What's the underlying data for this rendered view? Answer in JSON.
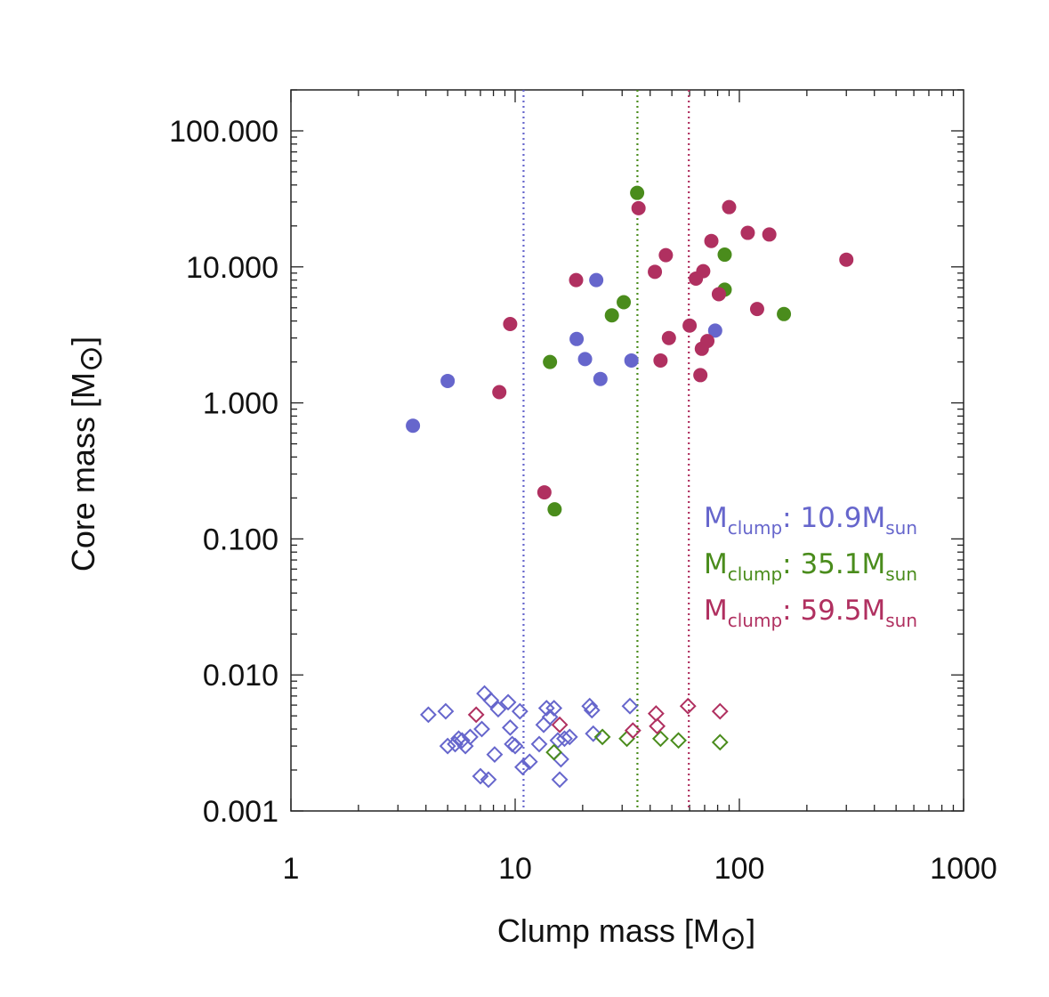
{
  "chart_data": {
    "type": "scatter",
    "xlabel": "Clump mass [M",
    "ylabel": "Core mass [M",
    "label_suffix": "]",
    "sun_symbol": "⊙",
    "xscale": "log",
    "yscale": "log",
    "xlim": [
      1,
      1000
    ],
    "ylim": [
      0.001,
      200
    ],
    "x_ticks": [
      {
        "value": 1,
        "label": "1"
      },
      {
        "value": 10,
        "label": "10"
      },
      {
        "value": 100,
        "label": "100"
      },
      {
        "value": 1000,
        "label": "1000"
      }
    ],
    "y_ticks": [
      {
        "value": 0.001,
        "label": "0.001"
      },
      {
        "value": 0.01,
        "label": "0.010"
      },
      {
        "value": 0.1,
        "label": "0.100"
      },
      {
        "value": 1,
        "label": "1.000"
      },
      {
        "value": 10,
        "label": "10.000"
      },
      {
        "value": 100,
        "label": "100.000"
      }
    ],
    "legend_position": "middle-right",
    "series": [
      {
        "name": "M_clump: 10.9M_sun",
        "legend_prefix": "M",
        "legend_sub1": "clump",
        "legend_value": ": 10.9M",
        "legend_sub2": "sun",
        "color": "#6666cc",
        "threshold": 10.9,
        "cores": [
          [
            3.5,
            0.68
          ],
          [
            5.0,
            1.45
          ],
          [
            18.8,
            2.95
          ],
          [
            20.5,
            2.1
          ],
          [
            23.0,
            8.0
          ],
          [
            24.0,
            1.5
          ],
          [
            33.0,
            2.05
          ],
          [
            78.0,
            3.4
          ]
        ],
        "undetected": [
          [
            4.1,
            0.0051
          ],
          [
            4.9,
            0.0054
          ],
          [
            5.0,
            0.003
          ],
          [
            5.4,
            0.0031
          ],
          [
            5.6,
            0.0034
          ],
          [
            5.8,
            0.0033
          ],
          [
            6.0,
            0.003
          ],
          [
            6.3,
            0.0035
          ],
          [
            7.0,
            0.0018
          ],
          [
            7.1,
            0.004
          ],
          [
            7.3,
            0.0073
          ],
          [
            7.6,
            0.0017
          ],
          [
            7.8,
            0.0065
          ],
          [
            8.1,
            0.0026
          ],
          [
            8.4,
            0.0056
          ],
          [
            9.3,
            0.0063
          ],
          [
            9.5,
            0.0041
          ],
          [
            9.7,
            0.0031
          ],
          [
            10.0,
            0.003
          ],
          [
            10.5,
            0.0054
          ],
          [
            10.8,
            0.0021
          ],
          [
            11.6,
            0.0023
          ],
          [
            12.8,
            0.0031
          ],
          [
            13.4,
            0.0043
          ],
          [
            13.8,
            0.0057
          ],
          [
            14.3,
            0.0049
          ],
          [
            14.9,
            0.0057
          ],
          [
            15.5,
            0.0033
          ],
          [
            15.8,
            0.0017
          ],
          [
            16.0,
            0.0024
          ],
          [
            16.6,
            0.0034
          ],
          [
            17.5,
            0.0035
          ],
          [
            21.5,
            0.0059
          ],
          [
            22.0,
            0.0055
          ],
          [
            22.3,
            0.0037
          ],
          [
            32.5,
            0.0059
          ]
        ]
      },
      {
        "name": "M_clump: 35.1M_sun",
        "legend_prefix": "M",
        "legend_sub1": "clump",
        "legend_value": ": 35.1M",
        "legend_sub2": "sun",
        "color": "#4a8c1c",
        "threshold": 35.1,
        "cores": [
          [
            14.3,
            2.0
          ],
          [
            15.0,
            0.165
          ],
          [
            27.0,
            4.4
          ],
          [
            30.5,
            5.5
          ],
          [
            35.0,
            35.0
          ],
          [
            86.0,
            12.3
          ],
          [
            86.0,
            6.8
          ],
          [
            158.0,
            4.5
          ]
        ],
        "undetected": [
          [
            14.9,
            0.0027
          ],
          [
            24.5,
            0.0035
          ],
          [
            31.5,
            0.0034
          ],
          [
            44.5,
            0.0034
          ],
          [
            53.5,
            0.0033
          ],
          [
            82.0,
            0.0032
          ]
        ]
      },
      {
        "name": "M_clump: 59.5M_sun",
        "legend_prefix": "M",
        "legend_sub1": "clump",
        "legend_value": ": 59.5M",
        "legend_sub2": "sun",
        "color": "#b03060",
        "threshold": 59.5,
        "cores": [
          [
            8.5,
            1.2
          ],
          [
            9.5,
            3.8
          ],
          [
            13.5,
            0.22
          ],
          [
            18.7,
            8.0
          ],
          [
            35.5,
            27.0
          ],
          [
            42.0,
            9.2
          ],
          [
            44.5,
            2.05
          ],
          [
            47.0,
            12.2
          ],
          [
            48.5,
            3.0
          ],
          [
            60.0,
            3.7
          ],
          [
            64.0,
            8.2
          ],
          [
            67.0,
            1.6
          ],
          [
            68.0,
            2.5
          ],
          [
            69.0,
            9.3
          ],
          [
            72.0,
            2.85
          ],
          [
            75.0,
            15.5
          ],
          [
            81.0,
            6.3
          ],
          [
            90.0,
            27.5
          ],
          [
            109.0,
            17.8
          ],
          [
            120.0,
            4.9
          ],
          [
            136.0,
            17.3
          ],
          [
            300.0,
            11.3
          ]
        ],
        "undetected": [
          [
            6.7,
            0.0051
          ],
          [
            15.8,
            0.0043
          ],
          [
            33.5,
            0.0039
          ],
          [
            42.5,
            0.0052
          ],
          [
            43.0,
            0.0042
          ],
          [
            59.0,
            0.0059
          ],
          [
            82.0,
            0.0054
          ]
        ]
      }
    ]
  }
}
